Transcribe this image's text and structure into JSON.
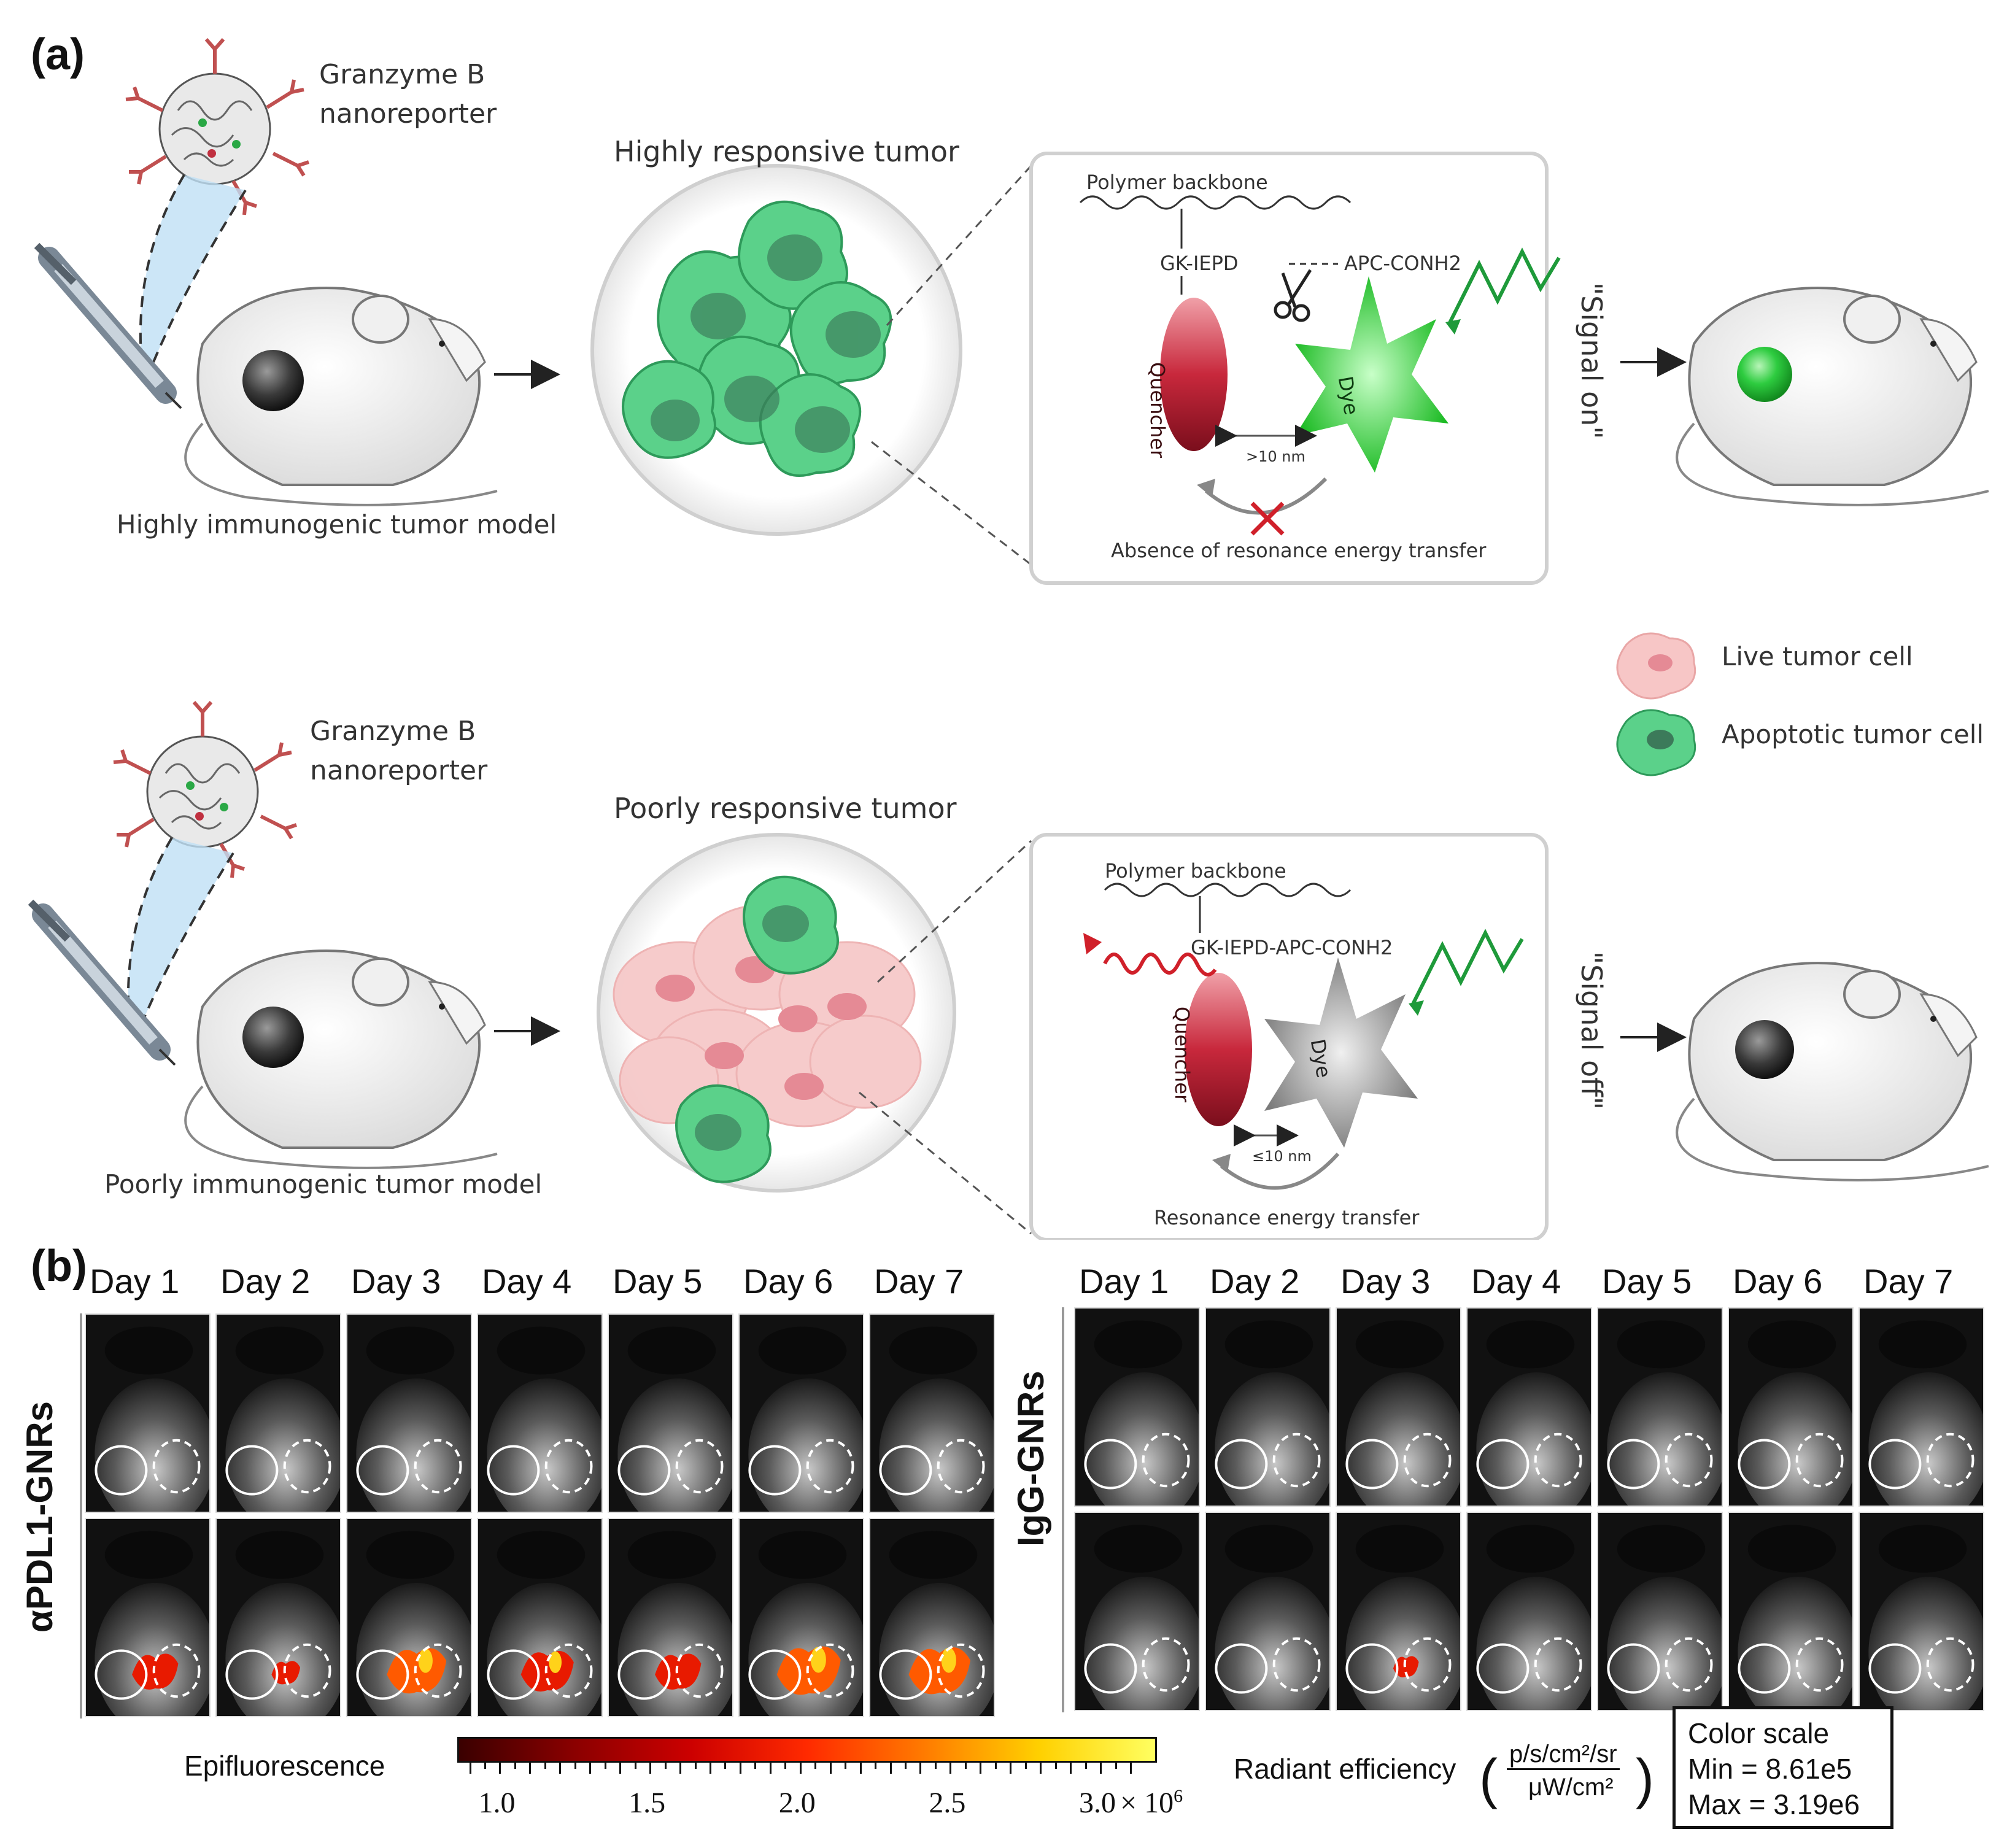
{
  "panel_a": {
    "label": "(a)",
    "top": {
      "nano_line1": "Granzyme B",
      "nano_line2": "nanoreporter",
      "model_caption": "Highly immunogenic tumor model",
      "tumor_title": "Highly responsive tumor",
      "box": {
        "backbone": "Polymer backbone",
        "peptide_left": "GK-IEPD",
        "peptide_right": "APC-CONH2",
        "quencher": "Quencher",
        "dye": "Dye",
        "distance": ">10 nm",
        "caption": "Absence of resonance energy transfer"
      },
      "signal": "\"Signal on\""
    },
    "bottom": {
      "nano_line1": "Granzyme B",
      "nano_line2": "nanoreporter",
      "model_caption": "Poorly immunogenic tumor model",
      "tumor_title": "Poorly responsive tumor",
      "box": {
        "backbone": "Polymer backbone",
        "peptide": "GK-IEPD-APC-CONH2",
        "quencher": "Quencher",
        "dye": "Dye",
        "distance": "≤10 nm",
        "caption": "Resonance energy transfer"
      },
      "signal": "\"Signal off\""
    },
    "legend": {
      "live": "Live tumor cell",
      "apoptotic": "Apoptotic tumor cell"
    }
  },
  "panel_b": {
    "label": "(b)",
    "days": [
      "Day 1",
      "Day 2",
      "Day 3",
      "Day 4",
      "Day 5",
      "Day 6",
      "Day 7"
    ],
    "group_left": "αPDL1-GNRs",
    "group_right": "IgG-GNRs",
    "signal_left_bottom": [
      0.55,
      0.15,
      0.85,
      0.7,
      0.55,
      0.95,
      0.9
    ],
    "signal_right_bottom": [
      0,
      0,
      0.08,
      0,
      0,
      0,
      0
    ],
    "colorbar": {
      "title": "Epifluorescence",
      "ticks": [
        "1.0",
        "1.5",
        "2.0",
        "2.5",
        "3.0"
      ],
      "multiplier": "× 10",
      "exponent": "6",
      "unit_prefix": "Radiant efficiency",
      "unit_num": "p/s/cm²/sr",
      "unit_den": "μW/cm²",
      "colors": [
        "#3a0000",
        "#8b0000",
        "#cc0000",
        "#ff2a00",
        "#ff7a00",
        "#ffd000",
        "#ffff60"
      ]
    },
    "color_scale": {
      "title": "Color scale",
      "min": "Min = 8.61e5",
      "max": "Max = 3.19e6"
    }
  }
}
